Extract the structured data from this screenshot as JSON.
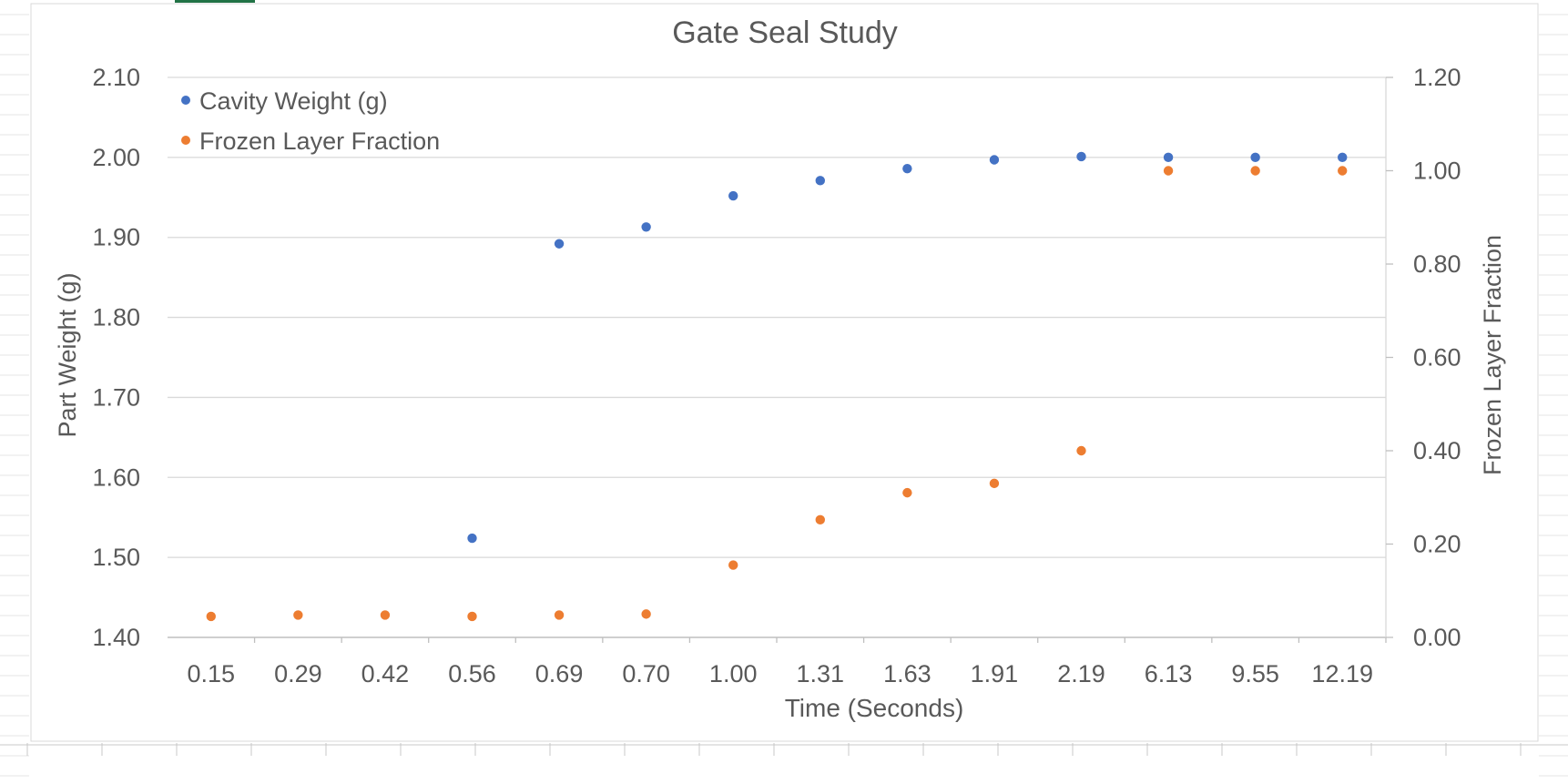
{
  "chart_data": {
    "type": "scatter",
    "title": "Gate Seal Study",
    "xlabel": "Time (Seconds)",
    "ylabel": "Part Weight (g)",
    "y2label": "Frozen Layer Fraction",
    "categories": [
      "0.15",
      "0.29",
      "0.42",
      "0.56",
      "0.69",
      "0.70",
      "1.00",
      "1.31",
      "1.63",
      "1.91",
      "2.19",
      "6.13",
      "9.55",
      "12.19"
    ],
    "ylim": [
      1.4,
      2.1
    ],
    "yticks": [
      "1.40",
      "1.50",
      "1.60",
      "1.70",
      "1.80",
      "1.90",
      "2.00",
      "2.10"
    ],
    "y2lim": [
      0.0,
      1.2
    ],
    "y2ticks": [
      "0.00",
      "0.20",
      "0.40",
      "0.60",
      "0.80",
      "1.00",
      "1.20"
    ],
    "legend_position": "top-left",
    "series": [
      {
        "name": "Cavity Weight (g)",
        "axis": "left",
        "color": "#4472C4",
        "values": [
          null,
          null,
          null,
          1.524,
          1.892,
          1.913,
          1.952,
          1.971,
          1.986,
          1.997,
          2.001,
          2.0,
          2.0,
          2.0
        ]
      },
      {
        "name": "Frozen Layer Fraction",
        "axis": "right",
        "color": "#ED7D31",
        "values": [
          0.045,
          0.048,
          0.048,
          0.045,
          0.048,
          0.05,
          0.155,
          0.252,
          0.31,
          0.33,
          0.4,
          1.0,
          1.0,
          1.0
        ]
      }
    ]
  }
}
